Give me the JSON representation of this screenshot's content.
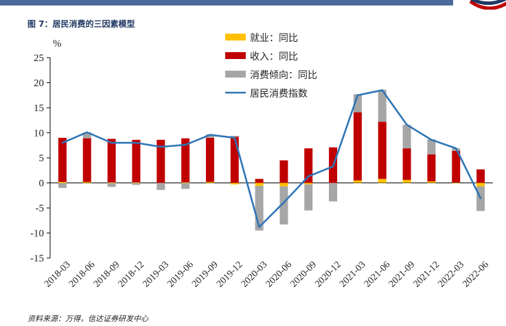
{
  "header": {
    "figure_title": "图 7：居民消费的三因素模型"
  },
  "source_note": "资料来源：万得，信达证券研发中心",
  "colors": {
    "employment": "#ffc000",
    "income": "#c00000",
    "propensity": "#a6a6a6",
    "index": "#2e75b6",
    "topbar": "#4b6a9b"
  },
  "chart_data": {
    "type": "bar",
    "unit_label": "%",
    "ylim": [
      -15,
      25
    ],
    "yticks": [
      25,
      20,
      15,
      10,
      5,
      0,
      -5,
      -10,
      -15
    ],
    "grid": false,
    "legend_position": "top-right",
    "categories": [
      "2018-03",
      "2018-06",
      "2018-09",
      "2018-12",
      "2019-03",
      "2019-06",
      "2019-09",
      "2019-12",
      "2020-03",
      "2020-06",
      "2020-09",
      "2020-12",
      "2021-03",
      "2021-06",
      "2021-09",
      "2021-12",
      "2022-03",
      "2022-06"
    ],
    "series": [
      {
        "name": "就业：同比",
        "kind": "bar",
        "values": [
          0.2,
          0.2,
          0.1,
          0.1,
          0.0,
          0.1,
          0.2,
          -0.3,
          -0.6,
          -0.7,
          -0.3,
          0.0,
          0.5,
          0.8,
          0.6,
          0.3,
          0.1,
          -0.7
        ]
      },
      {
        "name": "收入：同比",
        "kind": "bar",
        "values": [
          8.8,
          8.7,
          8.7,
          8.5,
          8.6,
          8.8,
          8.8,
          9.2,
          0.8,
          4.5,
          6.9,
          7.1,
          13.6,
          11.4,
          6.3,
          5.4,
          6.3,
          2.7
        ]
      },
      {
        "name": "消费倾向：同比",
        "kind": "bar",
        "values": [
          -1.0,
          1.2,
          -0.8,
          -0.4,
          -1.4,
          -1.2,
          0.7,
          0.2,
          -8.9,
          -7.6,
          -5.2,
          -3.7,
          3.6,
          6.4,
          4.7,
          3.0,
          0.5,
          -4.9
        ]
      },
      {
        "name": "居民消费指数",
        "kind": "line",
        "values": [
          8.0,
          10.1,
          8.0,
          8.0,
          7.2,
          7.6,
          9.6,
          9.0,
          -8.8,
          -3.9,
          1.3,
          3.3,
          17.5,
          18.5,
          11.6,
          8.6,
          6.9,
          -3.1
        ]
      }
    ]
  }
}
